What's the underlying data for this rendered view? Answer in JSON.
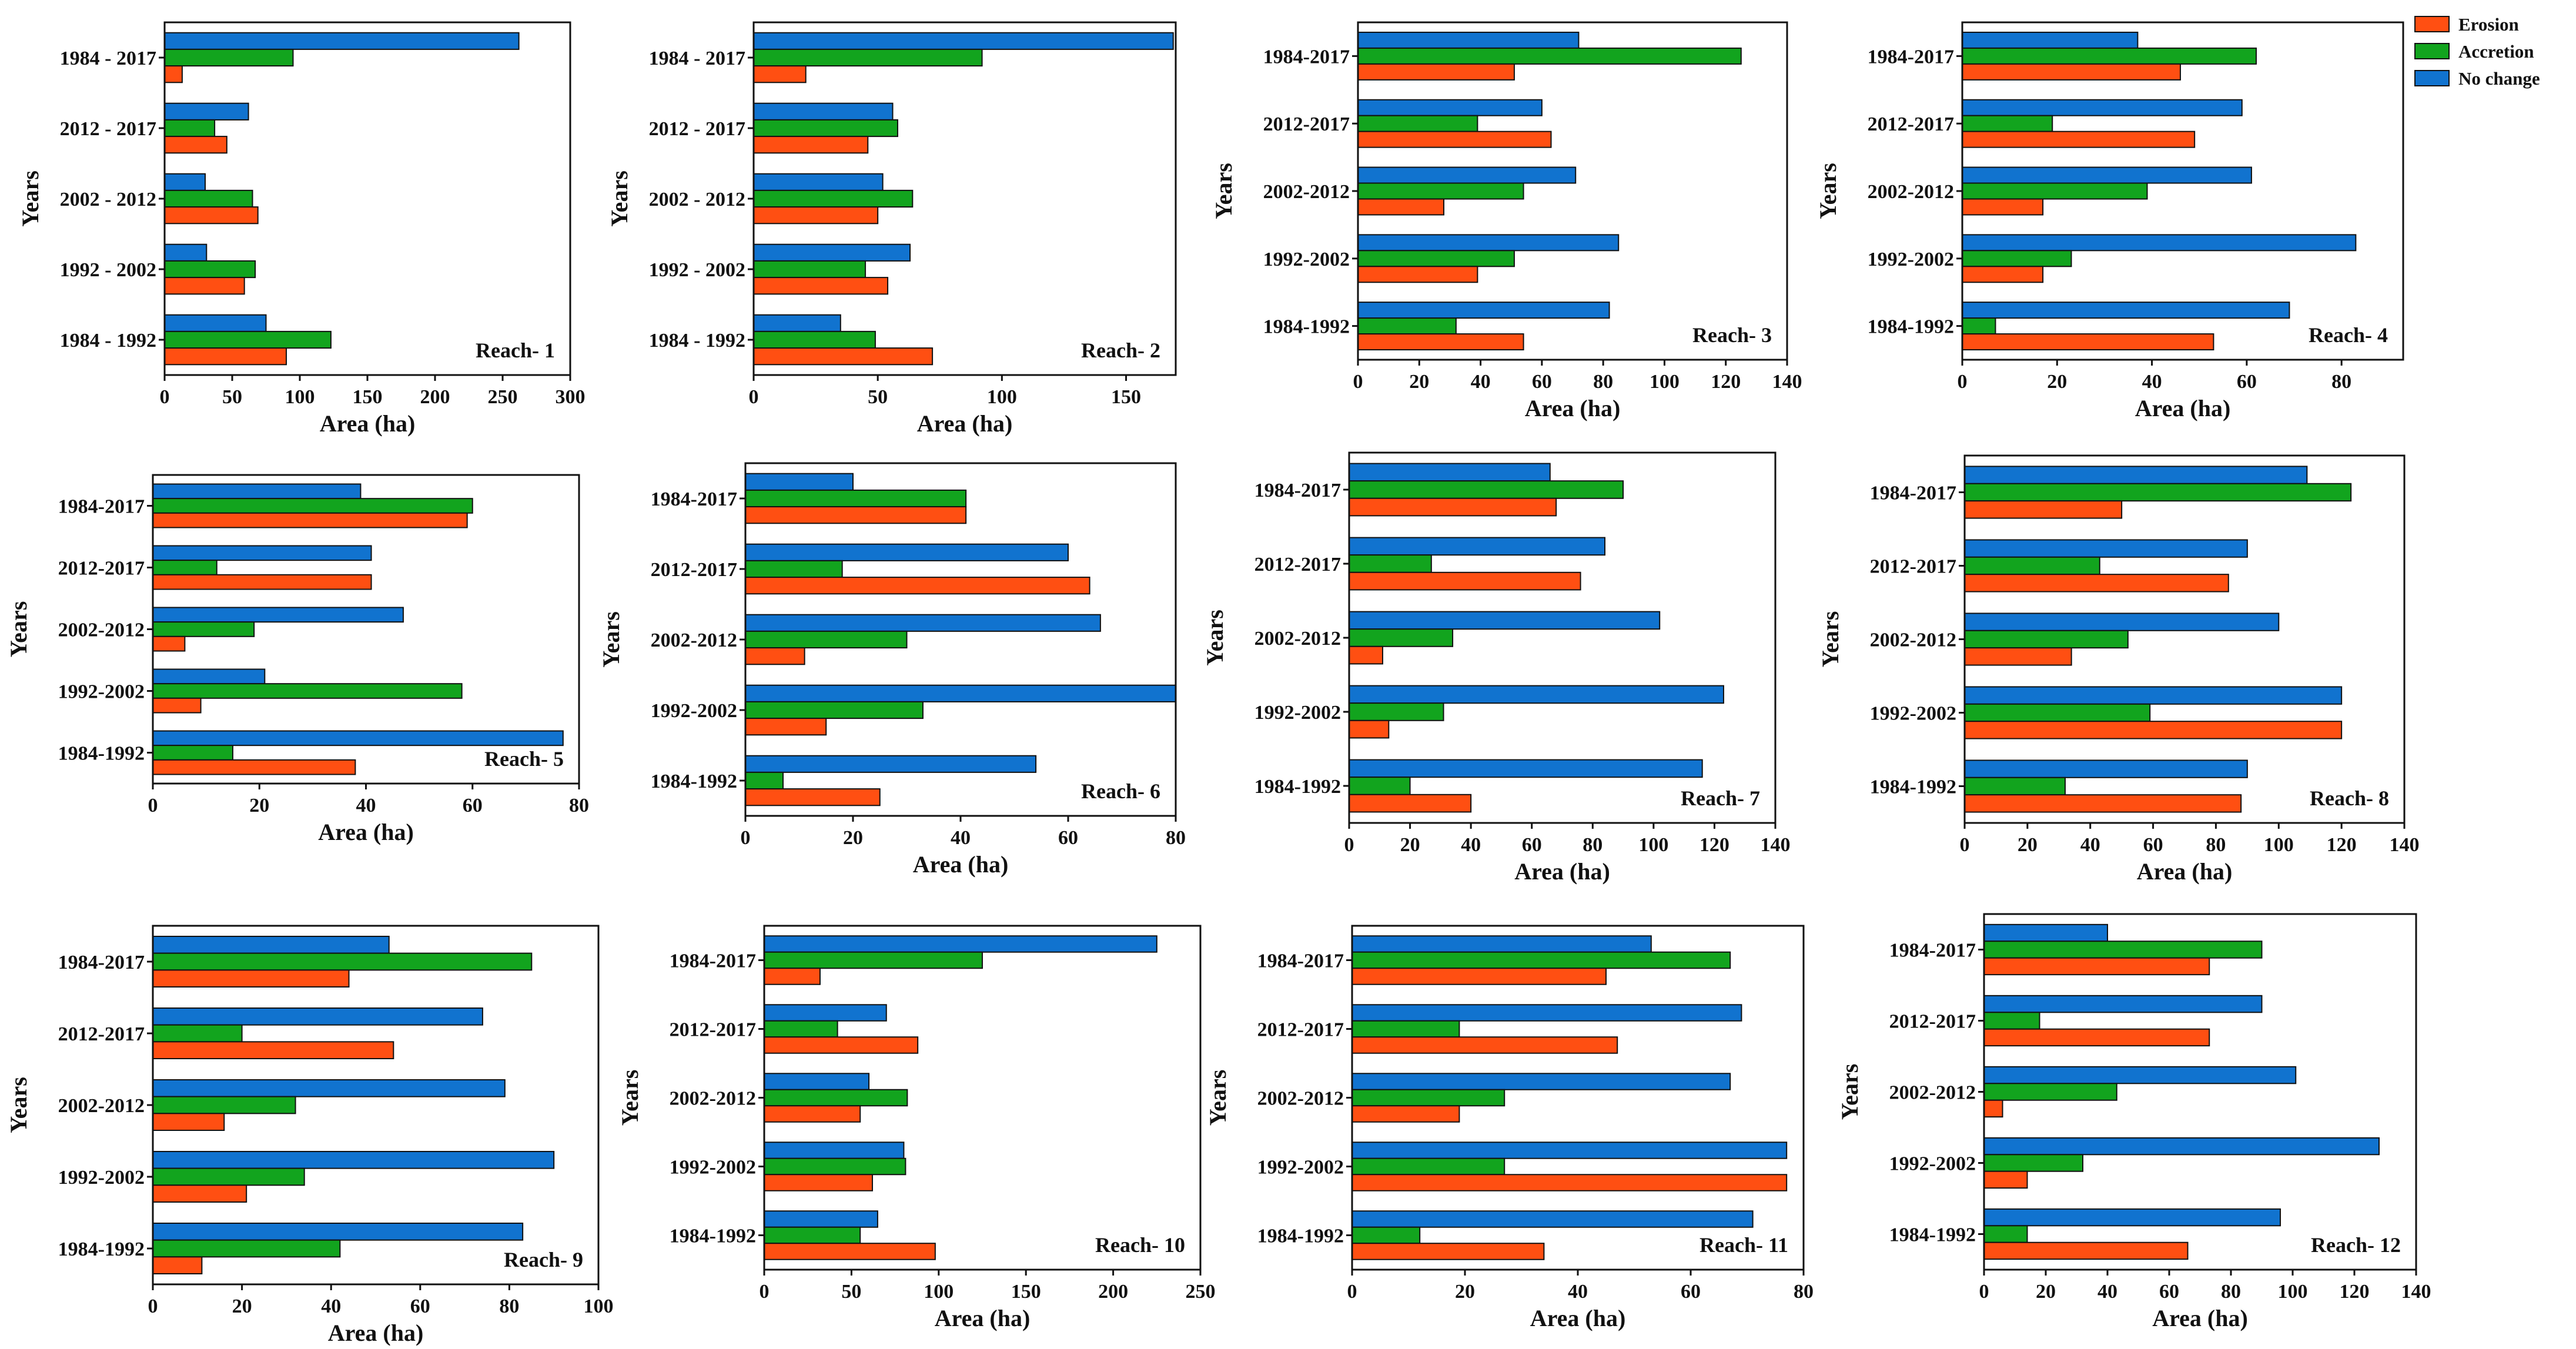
{
  "legend": [
    {
      "name": "Erosion",
      "color": "#FF4F12"
    },
    {
      "name": "Accretion",
      "color": "#12A41E"
    },
    {
      "name": "No change",
      "color": "#1173CF"
    }
  ],
  "chart_data": [
    {
      "type": "bar",
      "orientation": "horizontal",
      "title": "Reach- 1",
      "xlabel": "Area (ha)",
      "ylabel": "Years",
      "categories": [
        "1984 - 2017",
        "2012 - 2017",
        "2002 - 2012",
        "1992 - 2002",
        "1984 - 1992"
      ],
      "xticks": [
        "0",
        "50",
        "100",
        "150",
        "200",
        "250",
        "300"
      ],
      "xlim": [
        0,
        300
      ],
      "series": [
        {
          "name": "No change",
          "values": [
            262,
            62,
            30,
            31,
            75
          ]
        },
        {
          "name": "Accretion",
          "values": [
            95,
            37,
            65,
            67,
            123
          ]
        },
        {
          "name": "Erosion",
          "values": [
            13,
            46,
            69,
            59,
            90
          ]
        }
      ]
    },
    {
      "type": "bar",
      "orientation": "horizontal",
      "title": "Reach- 2",
      "xlabel": "Area (ha)",
      "ylabel": "Years",
      "categories": [
        "1984 - 2017",
        "2012 - 2017",
        "2002 - 2012",
        "1992 - 2002",
        "1984 - 1992"
      ],
      "xticks": [
        "0",
        "50",
        "100",
        "150"
      ],
      "xlim": [
        0,
        170
      ],
      "series": [
        {
          "name": "No change",
          "values": [
            169,
            56,
            52,
            63,
            35
          ]
        },
        {
          "name": "Accretion",
          "values": [
            92,
            58,
            64,
            45,
            49
          ]
        },
        {
          "name": "Erosion",
          "values": [
            21,
            46,
            50,
            54,
            72
          ]
        }
      ]
    },
    {
      "type": "bar",
      "orientation": "horizontal",
      "title": "Reach- 3",
      "xlabel": "Area (ha)",
      "ylabel": "Years",
      "categories": [
        "1984-2017",
        "2012-2017",
        "2002-2012",
        "1992-2002",
        "1984-1992"
      ],
      "xticks": [
        "0",
        "20",
        "40",
        "60",
        "80",
        "100",
        "120",
        "140"
      ],
      "xlim": [
        0,
        140
      ],
      "series": [
        {
          "name": "No change",
          "values": [
            72,
            60,
            71,
            85,
            82
          ]
        },
        {
          "name": "Accretion",
          "values": [
            125,
            39,
            54,
            51,
            32
          ]
        },
        {
          "name": "Erosion",
          "values": [
            51,
            63,
            28,
            39,
            54
          ]
        }
      ]
    },
    {
      "type": "bar",
      "orientation": "horizontal",
      "title": "Reach- 4",
      "xlabel": "Area (ha)",
      "ylabel": "Years",
      "categories": [
        "1984-2017",
        "2012-2017",
        "2002-2012",
        "1992-2002",
        "1984-1992"
      ],
      "xticks": [
        "0",
        "20",
        "40",
        "60",
        "80"
      ],
      "xlim": [
        0,
        93
      ],
      "series": [
        {
          "name": "No change",
          "values": [
            37,
            59,
            61,
            83,
            69
          ]
        },
        {
          "name": "Accretion",
          "values": [
            62,
            19,
            39,
            23,
            7
          ]
        },
        {
          "name": "Erosion",
          "values": [
            46,
            49,
            17,
            17,
            53
          ]
        }
      ]
    },
    {
      "type": "bar",
      "orientation": "horizontal",
      "title": "Reach- 5",
      "xlabel": "Area (ha)",
      "ylabel": "Years",
      "categories": [
        "1984-2017",
        "2012-2017",
        "2002-2012",
        "1992-2002",
        "1984-1992"
      ],
      "xticks": [
        "0",
        "20",
        "40",
        "60",
        "80"
      ],
      "xlim": [
        0,
        80
      ],
      "series": [
        {
          "name": "No change",
          "values": [
            39,
            41,
            47,
            21,
            77
          ]
        },
        {
          "name": "Accretion",
          "values": [
            60,
            12,
            19,
            58,
            15
          ]
        },
        {
          "name": "Erosion",
          "values": [
            59,
            41,
            6,
            9,
            38
          ]
        }
      ]
    },
    {
      "type": "bar",
      "orientation": "horizontal",
      "title": "Reach- 6",
      "xlabel": "Area (ha)",
      "ylabel": "Years",
      "categories": [
        "1984-2017",
        "2012-2017",
        "2002-2012",
        "1992-2002",
        "1984-1992"
      ],
      "xticks": [
        "0",
        "20",
        "40",
        "60",
        "80"
      ],
      "xlim": [
        0,
        80
      ],
      "series": [
        {
          "name": "No change",
          "values": [
            20,
            60,
            66,
            80,
            54
          ]
        },
        {
          "name": "Accretion",
          "values": [
            41,
            18,
            30,
            33,
            7
          ]
        },
        {
          "name": "Erosion",
          "values": [
            41,
            64,
            11,
            15,
            25
          ]
        }
      ]
    },
    {
      "type": "bar",
      "orientation": "horizontal",
      "title": "Reach- 7",
      "xlabel": "Area (ha)",
      "ylabel": "Years",
      "categories": [
        "1984-2017",
        "2012-2017",
        "2002-2012",
        "1992-2002",
        "1984-1992"
      ],
      "xticks": [
        "0",
        "20",
        "40",
        "60",
        "80",
        "100",
        "120",
        "140"
      ],
      "xlim": [
        0,
        140
      ],
      "series": [
        {
          "name": "No change",
          "values": [
            66,
            84,
            102,
            123,
            116
          ]
        },
        {
          "name": "Accretion",
          "values": [
            90,
            27,
            34,
            31,
            20
          ]
        },
        {
          "name": "Erosion",
          "values": [
            68,
            76,
            11,
            13,
            40
          ]
        }
      ]
    },
    {
      "type": "bar",
      "orientation": "horizontal",
      "title": "Reach- 8",
      "xlabel": "Area (ha)",
      "ylabel": "Years",
      "categories": [
        "1984-2017",
        "2012-2017",
        "2002-2012",
        "1992-2002",
        "1984-1992"
      ],
      "xticks": [
        "0",
        "20",
        "40",
        "60",
        "80",
        "100",
        "120",
        "140"
      ],
      "xlim": [
        0,
        140
      ],
      "series": [
        {
          "name": "No change",
          "values": [
            109,
            90,
            100,
            120,
            90
          ]
        },
        {
          "name": "Accretion",
          "values": [
            123,
            43,
            52,
            59,
            32
          ]
        },
        {
          "name": "Erosion",
          "values": [
            50,
            84,
            34,
            120,
            88
          ]
        }
      ]
    },
    {
      "type": "bar",
      "orientation": "horizontal",
      "title": "Reach- 9",
      "xlabel": "Area (ha)",
      "ylabel": "Years",
      "categories": [
        "1984-2017",
        "2012-2017",
        "2002-2012",
        "1992-2002",
        "1984-1992"
      ],
      "xticks": [
        "0",
        "20",
        "40",
        "60",
        "80",
        "100"
      ],
      "xlim": [
        0,
        100
      ],
      "series": [
        {
          "name": "No change",
          "values": [
            53,
            74,
            79,
            90,
            83
          ]
        },
        {
          "name": "Accretion",
          "values": [
            85,
            20,
            32,
            34,
            42
          ]
        },
        {
          "name": "Erosion",
          "values": [
            44,
            54,
            16,
            21,
            11
          ]
        }
      ]
    },
    {
      "type": "bar",
      "orientation": "horizontal",
      "title": "Reach- 10",
      "xlabel": "Area (ha)",
      "ylabel": "Years",
      "categories": [
        "1984-2017",
        "2012-2017",
        "2002-2012",
        "1992-2002",
        "1984-1992"
      ],
      "xticks": [
        "0",
        "50",
        "100",
        "150",
        "200",
        "250"
      ],
      "xlim": [
        0,
        250
      ],
      "series": [
        {
          "name": "No change",
          "values": [
            225,
            70,
            60,
            80,
            65
          ]
        },
        {
          "name": "Accretion",
          "values": [
            125,
            42,
            82,
            81,
            55
          ]
        },
        {
          "name": "Erosion",
          "values": [
            32,
            88,
            55,
            62,
            98
          ]
        }
      ]
    },
    {
      "type": "bar",
      "orientation": "horizontal",
      "title": "Reach- 11",
      "xlabel": "Area (ha)",
      "ylabel": "Years",
      "categories": [
        "1984-2017",
        "2012-2017",
        "2002-2012",
        "1992-2002",
        "1984-1992"
      ],
      "xticks": [
        "0",
        "20",
        "40",
        "60",
        "80"
      ],
      "xlim": [
        0,
        80
      ],
      "series": [
        {
          "name": "No change",
          "values": [
            53,
            69,
            67,
            77,
            71
          ]
        },
        {
          "name": "Accretion",
          "values": [
            67,
            19,
            27,
            27,
            12
          ]
        },
        {
          "name": "Erosion",
          "values": [
            45,
            47,
            19,
            77,
            34
          ]
        }
      ]
    },
    {
      "type": "bar",
      "orientation": "horizontal",
      "title": "Reach- 12",
      "xlabel": "Area (ha)",
      "ylabel": "Years",
      "categories": [
        "1984-2017",
        "2012-2017",
        "2002-2012",
        "1992-2002",
        "1984-1992"
      ],
      "xticks": [
        "0",
        "20",
        "40",
        "60",
        "80",
        "100",
        "120",
        "140"
      ],
      "xlim": [
        0,
        140
      ],
      "series": [
        {
          "name": "No change",
          "values": [
            40,
            90,
            101,
            128,
            96
          ]
        },
        {
          "name": "Accretion",
          "values": [
            90,
            18,
            43,
            32,
            14
          ]
        },
        {
          "name": "Erosion",
          "values": [
            73,
            73,
            6,
            14,
            66
          ]
        }
      ]
    }
  ]
}
